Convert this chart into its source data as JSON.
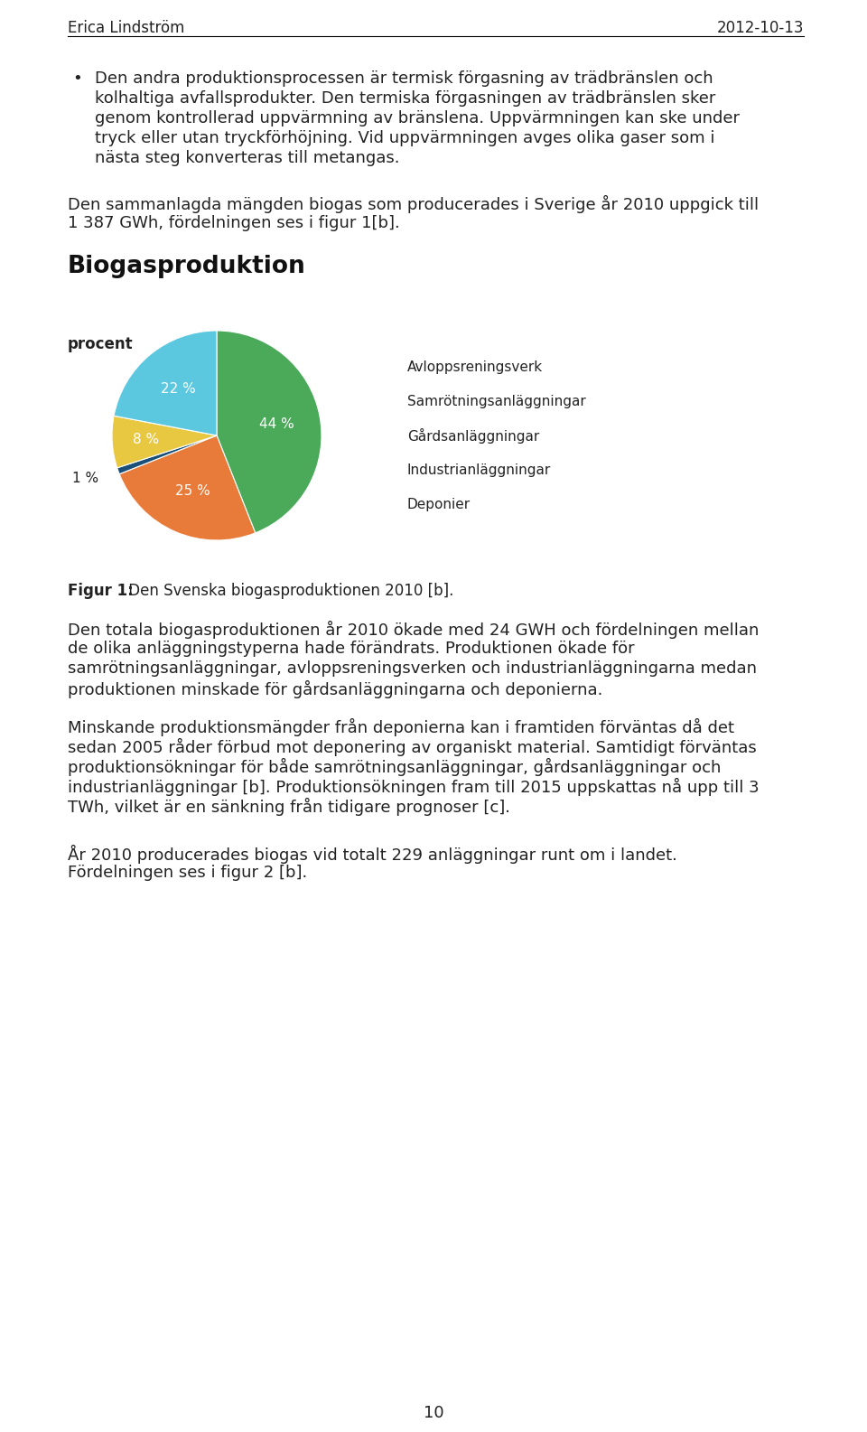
{
  "header_left": "Erica Lindström",
  "header_right": "2012-10-13",
  "chart_title": "Biogasproduktion",
  "chart_ylabel": "procent",
  "slices": [
    44,
    25,
    1,
    8,
    22
  ],
  "slice_labels": [
    "44 %",
    "25 %",
    "1 %",
    "8 %",
    "22 %"
  ],
  "slice_colors": [
    "#4aaa5a",
    "#e87b3a",
    "#1a4f7a",
    "#e8c840",
    "#5bc8e0"
  ],
  "legend_labels": [
    "Avloppsreningsverk",
    "Samrötningsanläggningar",
    "Gårdsanläggningar",
    "Industrianläggningar",
    "Deponier"
  ],
  "legend_colors": [
    "#4aaa5a",
    "#e87b3a",
    "#1a4f7a",
    "#e8c840",
    "#5bc8e0"
  ],
  "figur_caption_bold": "Figur 1:",
  "figur_caption_normal": " Den Svenska biogasproduktionen 2010 [b].",
  "page_number": "10",
  "background_color": "#ffffff",
  "text_color": "#222222",
  "header_line_color": "#000000",
  "bullet_lines": [
    "Den andra produktionsprocessen är termisk förgasning av trädbränslen och",
    "kolhaltiga avfallsprodukter. Den termiska förgasningen av trädbränslen sker",
    "genom kontrollerad uppvärmning av bränslena. Uppvärmningen kan ske under",
    "tryck eller utan tryckförhöjning. Vid uppvärmningen avges olika gaser som i",
    "nästa steg konverteras till metangas."
  ],
  "para1_lines": [
    "Den sammanlagda mängden biogas som producerades i Sverige år 2010 uppgick till",
    "1 387 GWh, fördelningen ses i figur 1[b]."
  ],
  "para2_lines": [
    "Den totala biogasproduktionen år 2010 ökade med 24 GWH och fördelningen mellan",
    "de olika anläggningstyperna hade förändrats. Produktionen ökade för",
    "samrötningsanläggningar, avloppsreningsverken och industrianläggningarna medan",
    "produktionen minskade för gårdsanläggningarna och deponierna."
  ],
  "para3_lines": [
    "Minskande produktionsmängder från deponierna kan i framtiden förväntas då det",
    "sedan 2005 råder förbud mot deponering av organiskt material. Samtidigt förväntas",
    "produktionsökningar för både samrötningsanläggningar, gårdsanläggningar och",
    "industrianläggningar [b]. Produktionsökningen fram till 2015 uppskattas nå upp till 3",
    "TWh, vilket är en sänkning från tidigare prognoser [c]."
  ],
  "para4_lines": [
    "År 2010 producerades biogas vid totalt 229 anläggningar runt om i landet.",
    "Fördelningen ses i figur 2 [b]."
  ],
  "font_size_body": 13,
  "font_size_header": 12,
  "font_size_chart_title": 19,
  "font_size_caption": 12,
  "font_size_ylabel": 12,
  "font_size_pie_label": 11,
  "font_size_legend": 11
}
